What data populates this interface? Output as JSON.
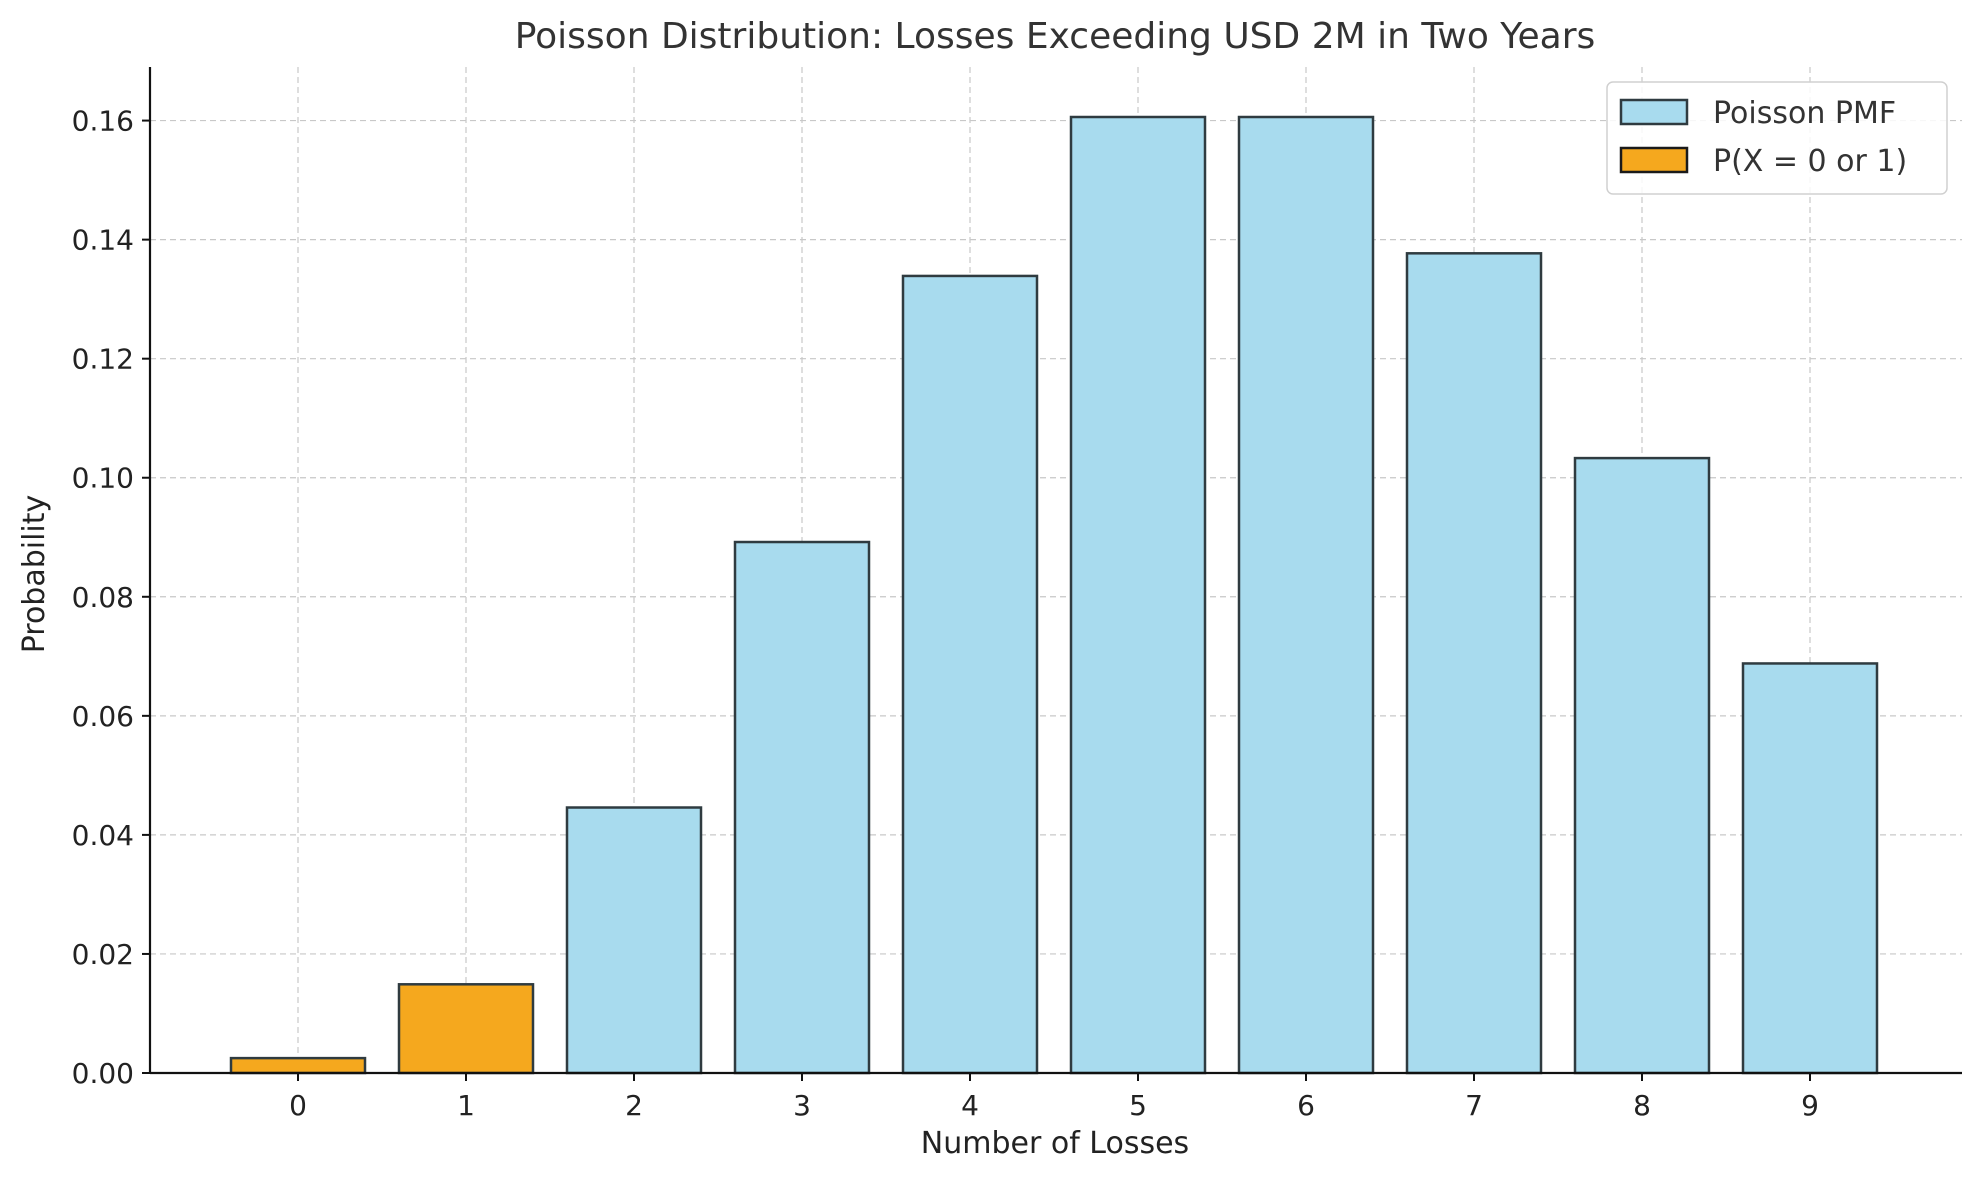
{
  "chart_data": {
    "type": "bar",
    "title": "Poisson Distribution: Losses Exceeding USD 2M in Two Years",
    "xlabel": "Number of Losses",
    "ylabel": "Probability",
    "categories": [
      "0",
      "1",
      "2",
      "3",
      "4",
      "5",
      "6",
      "7",
      "8",
      "9"
    ],
    "values": [
      0.0025,
      0.0149,
      0.0446,
      0.0892,
      0.1339,
      0.1606,
      0.1606,
      0.1377,
      0.1033,
      0.0688
    ],
    "highlight_indices": [
      0,
      1
    ],
    "ylim": [
      0,
      0.169
    ],
    "yticks": [
      0.0,
      0.02,
      0.04,
      0.06,
      0.08,
      0.1,
      0.12,
      0.14,
      0.16
    ],
    "ytick_labels": [
      "0.00",
      "0.02",
      "0.04",
      "0.06",
      "0.08",
      "0.10",
      "0.12",
      "0.14",
      "0.16"
    ],
    "grid": true,
    "legend": {
      "placement": "top-right",
      "entries": [
        {
          "label": "Poisson PMF",
          "color": "#a8dbee"
        },
        {
          "label": "P(X = 0 or 1)",
          "color": "#f5a81e"
        }
      ]
    },
    "colors": {
      "base": "#a8dbee",
      "highlight": "#f5a81e",
      "edge": "#2f3b40"
    }
  }
}
